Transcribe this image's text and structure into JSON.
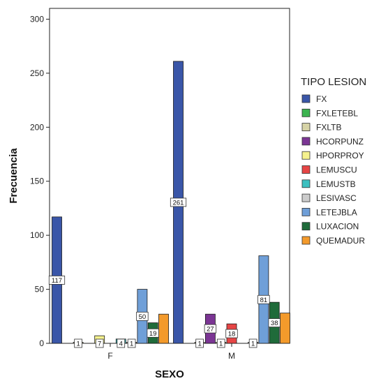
{
  "chart_data": {
    "type": "bar",
    "xlabel": "SEXO",
    "ylabel": "Frecuencia",
    "ylim": [
      0,
      310
    ],
    "yticks": [
      0,
      50,
      100,
      150,
      200,
      250,
      300
    ],
    "categories": [
      "F",
      "M"
    ],
    "legend_title": "TIPO LESION",
    "legend_position": "right",
    "series": [
      {
        "name": "FX",
        "color": "#3a56a8",
        "values": [
          117,
          261
        ],
        "labels": [
          "117",
          "261"
        ]
      },
      {
        "name": "FXLETEBL",
        "color": "#3cb450",
        "values": [
          null,
          null
        ],
        "labels": [
          "",
          ""
        ]
      },
      {
        "name": "FXLTB",
        "color": "#d6d3a6",
        "values": [
          1,
          1
        ],
        "labels": [
          "1",
          "1"
        ]
      },
      {
        "name": "HCORPUNZ",
        "color": "#7b3594",
        "values": [
          null,
          27
        ],
        "labels": [
          "",
          "27"
        ]
      },
      {
        "name": "HPORPROY",
        "color": "#f5f28e",
        "values": [
          7,
          1
        ],
        "labels": [
          "7",
          "1"
        ]
      },
      {
        "name": "LEMUSCU",
        "color": "#e64545",
        "values": [
          null,
          18
        ],
        "labels": [
          "",
          "18"
        ]
      },
      {
        "name": "LEMUSTB",
        "color": "#3cc0c0",
        "values": [
          4,
          null
        ],
        "labels": [
          "4",
          ""
        ]
      },
      {
        "name": "LESIVASC",
        "color": "#cccccc",
        "values": [
          1,
          1
        ],
        "labels": [
          "1",
          "1"
        ]
      },
      {
        "name": "LETEJBLA",
        "color": "#6f9fd8",
        "values": [
          50,
          81
        ],
        "labels": [
          "50",
          "81"
        ]
      },
      {
        "name": "LUXACION",
        "color": "#1f6b3a",
        "values": [
          19,
          38
        ],
        "labels": [
          "19",
          "38"
        ]
      },
      {
        "name": "QUEMADUR",
        "color": "#f39a2b",
        "values": [
          27,
          28
        ],
        "labels": [
          "",
          ""
        ]
      }
    ]
  }
}
